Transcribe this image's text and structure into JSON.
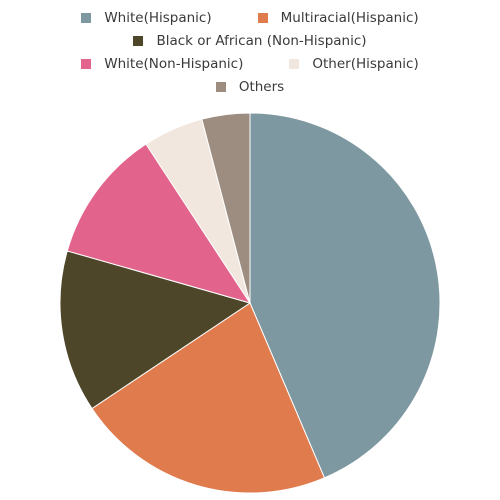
{
  "chart_data": {
    "type": "pie",
    "legend_position": "top",
    "slices": [
      {
        "label": "White(Hispanic)",
        "value": 44.9,
        "color": "#7e98a1"
      },
      {
        "label": "Multiracial(Hispanic)",
        "value": 22.7,
        "color": "#e07b4e"
      },
      {
        "label": "Black or African (Non-Hispanic)",
        "value": 14.2,
        "color": "#4e4629"
      },
      {
        "label": "White(Non-Hispanic)",
        "value": 11.7,
        "color": "#e2638c"
      },
      {
        "label": "Other(Hispanic)",
        "value": 5.3,
        "color": "#f2e7de"
      },
      {
        "label": "Others",
        "value": 4.2,
        "color": "#9d8d80"
      }
    ]
  }
}
